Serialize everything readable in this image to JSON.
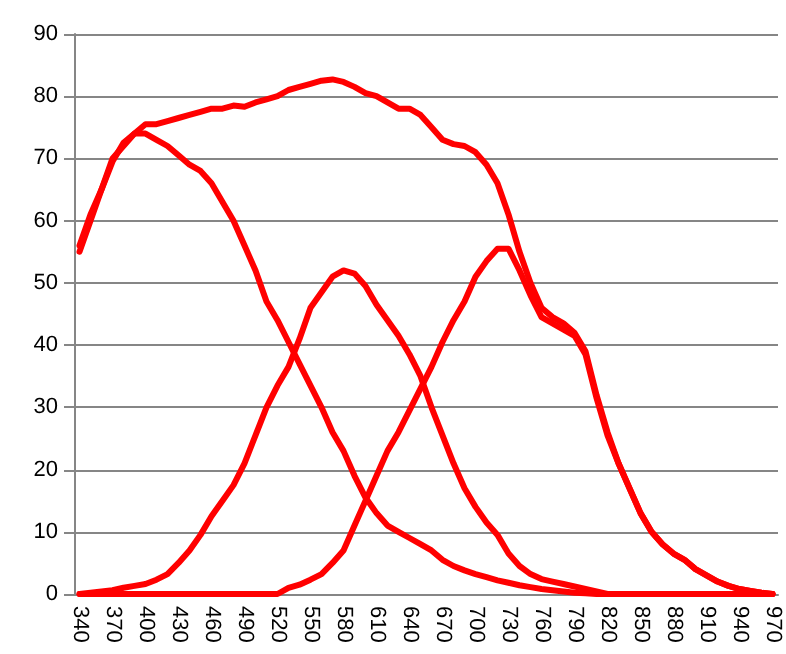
{
  "chart_data": {
    "type": "line",
    "categories": [
      "340",
      null,
      null,
      "370",
      null,
      null,
      "400",
      null,
      null,
      "430",
      null,
      null,
      "460",
      null,
      null,
      "490",
      null,
      null,
      "520",
      null,
      null,
      "550",
      null,
      null,
      "580",
      null,
      null,
      "610",
      null,
      null,
      "640",
      null,
      null,
      "670",
      null,
      null,
      "700",
      null,
      null,
      "730",
      null,
      null,
      "760",
      null,
      null,
      "790",
      null,
      null,
      "820",
      null,
      null,
      "850",
      null,
      null,
      "880",
      null,
      null,
      "910",
      null,
      null,
      "940",
      null,
      null,
      "970"
    ],
    "series": [
      {
        "color": "#ff0000",
        "values": [
          56,
          61,
          65,
          70,
          72,
          74,
          75.5,
          75.5,
          76,
          76.5,
          77,
          77.5,
          78,
          78,
          78.5,
          78.3,
          79,
          79.5,
          80,
          81,
          81.5,
          82,
          82.5,
          82.7,
          82.3,
          81.5,
          80.5,
          80,
          79,
          78,
          78,
          77,
          75,
          73,
          72.3,
          72,
          71,
          69,
          66,
          61,
          55,
          50,
          46,
          44.5,
          43.5,
          42,
          39,
          32,
          26,
          21,
          17,
          13,
          10,
          8,
          6.5,
          5.5,
          4,
          3,
          2,
          1.3,
          0.8,
          0.5,
          0.2,
          0
        ]
      },
      {
        "color": "#ff0000",
        "values": [
          55,
          60,
          65,
          69.5,
          72.5,
          74,
          74,
          73,
          72,
          70.5,
          69,
          68,
          66,
          63,
          60,
          56,
          52,
          47,
          44,
          40.5,
          37,
          33.5,
          30,
          26,
          23,
          19,
          15.5,
          13,
          11,
          10,
          9,
          8,
          7,
          5.5,
          4.5,
          3.8,
          3.2,
          2.7,
          2.2,
          1.8,
          1.4,
          1.1,
          0.8,
          0.6,
          0.4,
          0.2,
          0.1,
          0,
          0,
          0,
          0,
          0,
          0,
          0,
          0,
          0,
          0,
          0,
          0,
          0,
          0,
          0,
          0,
          0
        ]
      },
      {
        "color": "#ff0000",
        "values": [
          0,
          0.2,
          0.4,
          0.6,
          1,
          1.3,
          1.6,
          2.3,
          3.2,
          5,
          7,
          9.5,
          12.5,
          15,
          17.5,
          21,
          25.5,
          30,
          33.5,
          36.5,
          41,
          46,
          48.5,
          51,
          52,
          51.5,
          49.5,
          46.5,
          44,
          41.5,
          38.5,
          35,
          30,
          25.5,
          21,
          17,
          14,
          11.5,
          9.5,
          6.5,
          4.5,
          3.2,
          2.4,
          2,
          1.6,
          1.2,
          0.8,
          0.4,
          0,
          0,
          0,
          0,
          0,
          0,
          0,
          0,
          0,
          0,
          0,
          0,
          0,
          0,
          0,
          0
        ]
      },
      {
        "color": "#ff0000",
        "values": [
          0,
          0,
          0,
          0,
          0,
          0,
          0,
          0,
          0,
          0,
          0,
          0,
          0,
          0,
          0,
          0,
          0,
          0,
          0,
          1,
          1.5,
          2.3,
          3.2,
          5,
          7,
          11,
          15,
          19,
          23,
          26,
          29.5,
          33,
          36.5,
          40.5,
          44,
          47,
          51,
          53.5,
          55.5,
          55.5,
          52,
          48,
          44.5,
          43.5,
          42.5,
          41.5,
          38.5,
          31.5,
          25.5,
          21,
          17,
          13,
          10,
          8,
          6.5,
          5.5,
          4,
          3,
          2,
          1.3,
          0.8,
          0.5,
          0.2,
          0
        ]
      }
    ],
    "ylim": [
      0,
      90
    ],
    "yticks": [
      0,
      10,
      20,
      30,
      40,
      50,
      60,
      70,
      80,
      90
    ],
    "grid": "y"
  }
}
